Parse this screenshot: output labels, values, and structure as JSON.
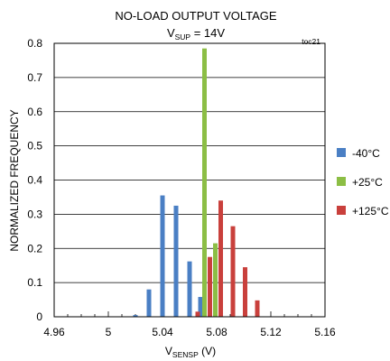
{
  "chart_data": {
    "type": "bar",
    "title": "NO-LOAD OUTPUT VOLTAGE",
    "subtitle": {
      "prefix": "V",
      "subscript": "SUP",
      "suffix": " = 14V"
    },
    "figure_tag": "toc21",
    "xlabel": {
      "prefix": "V",
      "subscript": "SENSP",
      "suffix": " (V)"
    },
    "ylabel": "NORMALIZED FREQUENCY",
    "xlim": [
      4.96,
      5.16
    ],
    "ylim": [
      0,
      0.8
    ],
    "x_ticks": [
      4.96,
      5.0,
      5.04,
      5.08,
      5.12,
      5.16
    ],
    "x_tick_labels": [
      "4.96",
      "5",
      "5.04",
      "5.08",
      "5.12",
      "5.16"
    ],
    "y_ticks": [
      0,
      0.1,
      0.2,
      0.3,
      0.4,
      0.5,
      0.6,
      0.7,
      0.8
    ],
    "y_tick_labels": [
      "0",
      "0.1",
      "0.2",
      "0.3",
      "0.4",
      "0.5",
      "0.6",
      "0.7",
      "0.8"
    ],
    "grid": "horizontal",
    "legend_position": "right",
    "series": [
      {
        "name": "-40°C",
        "color": "#4a7fc4",
        "x": [
          5.02,
          5.03,
          5.04,
          5.05,
          5.06,
          5.068
        ],
        "values": [
          0.005,
          0.08,
          0.355,
          0.325,
          0.162,
          0.058
        ]
      },
      {
        "name": "+25°C",
        "color": "#8cbe45",
        "x": [
          5.071,
          5.079
        ],
        "values": [
          0.785,
          0.215
        ]
      },
      {
        "name": "+125°C",
        "color": "#c9403c",
        "x": [
          5.066,
          5.075,
          5.083,
          5.092,
          5.101,
          5.11
        ],
        "values": [
          0.015,
          0.175,
          0.34,
          0.265,
          0.145,
          0.048
        ]
      }
    ]
  }
}
